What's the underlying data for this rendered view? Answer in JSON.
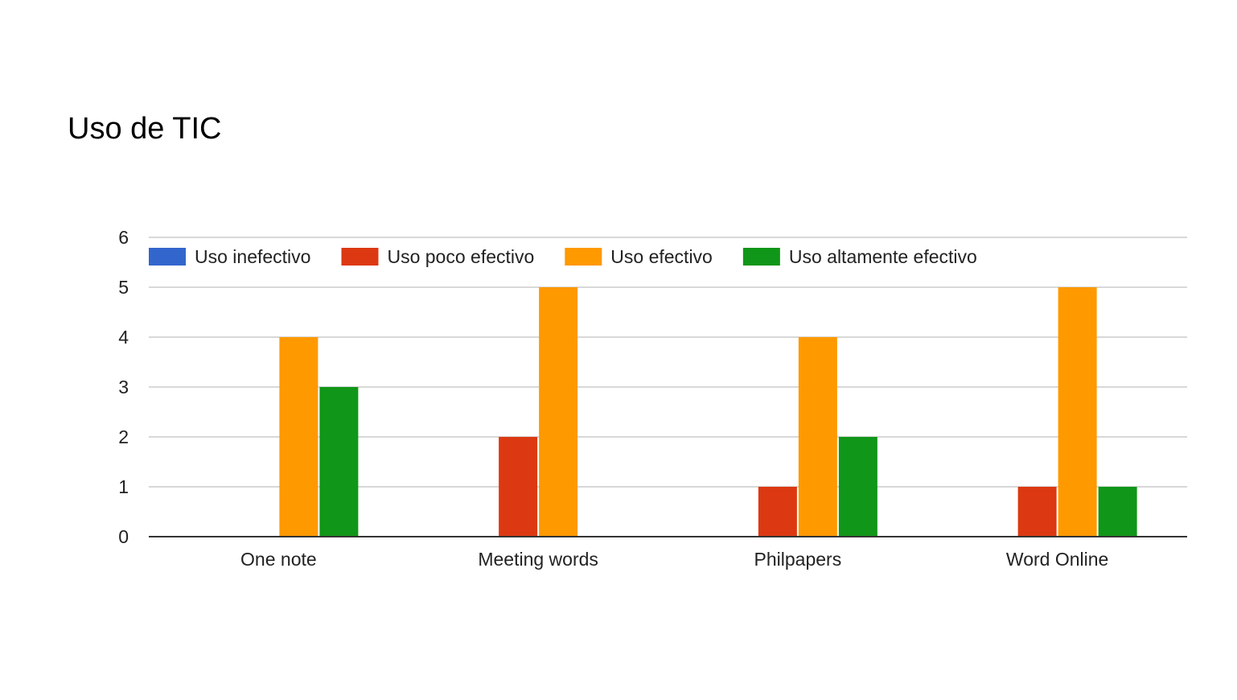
{
  "chart_data": {
    "type": "bar",
    "title": "Uso de TIC",
    "xlabel": "",
    "ylabel": "",
    "categories": [
      "One note",
      "Meeting words",
      "Philpapers",
      "Word Online"
    ],
    "series": [
      {
        "name": "Uso inefectivo",
        "color": "#3366cc",
        "values": [
          0,
          0,
          0,
          0
        ]
      },
      {
        "name": "Uso poco efectivo",
        "color": "#dc3912",
        "values": [
          0,
          2,
          1,
          1
        ]
      },
      {
        "name": "Uso efectivo",
        "color": "#ff9900",
        "values": [
          4,
          5,
          4,
          5
        ]
      },
      {
        "name": "Uso altamente efectivo",
        "color": "#109618",
        "values": [
          3,
          0,
          2,
          1
        ]
      }
    ],
    "ylim": [
      0,
      6
    ],
    "yticks": [
      "0",
      "1",
      "2",
      "3",
      "4",
      "5",
      "6"
    ],
    "grid": true,
    "legend_position": "top"
  }
}
